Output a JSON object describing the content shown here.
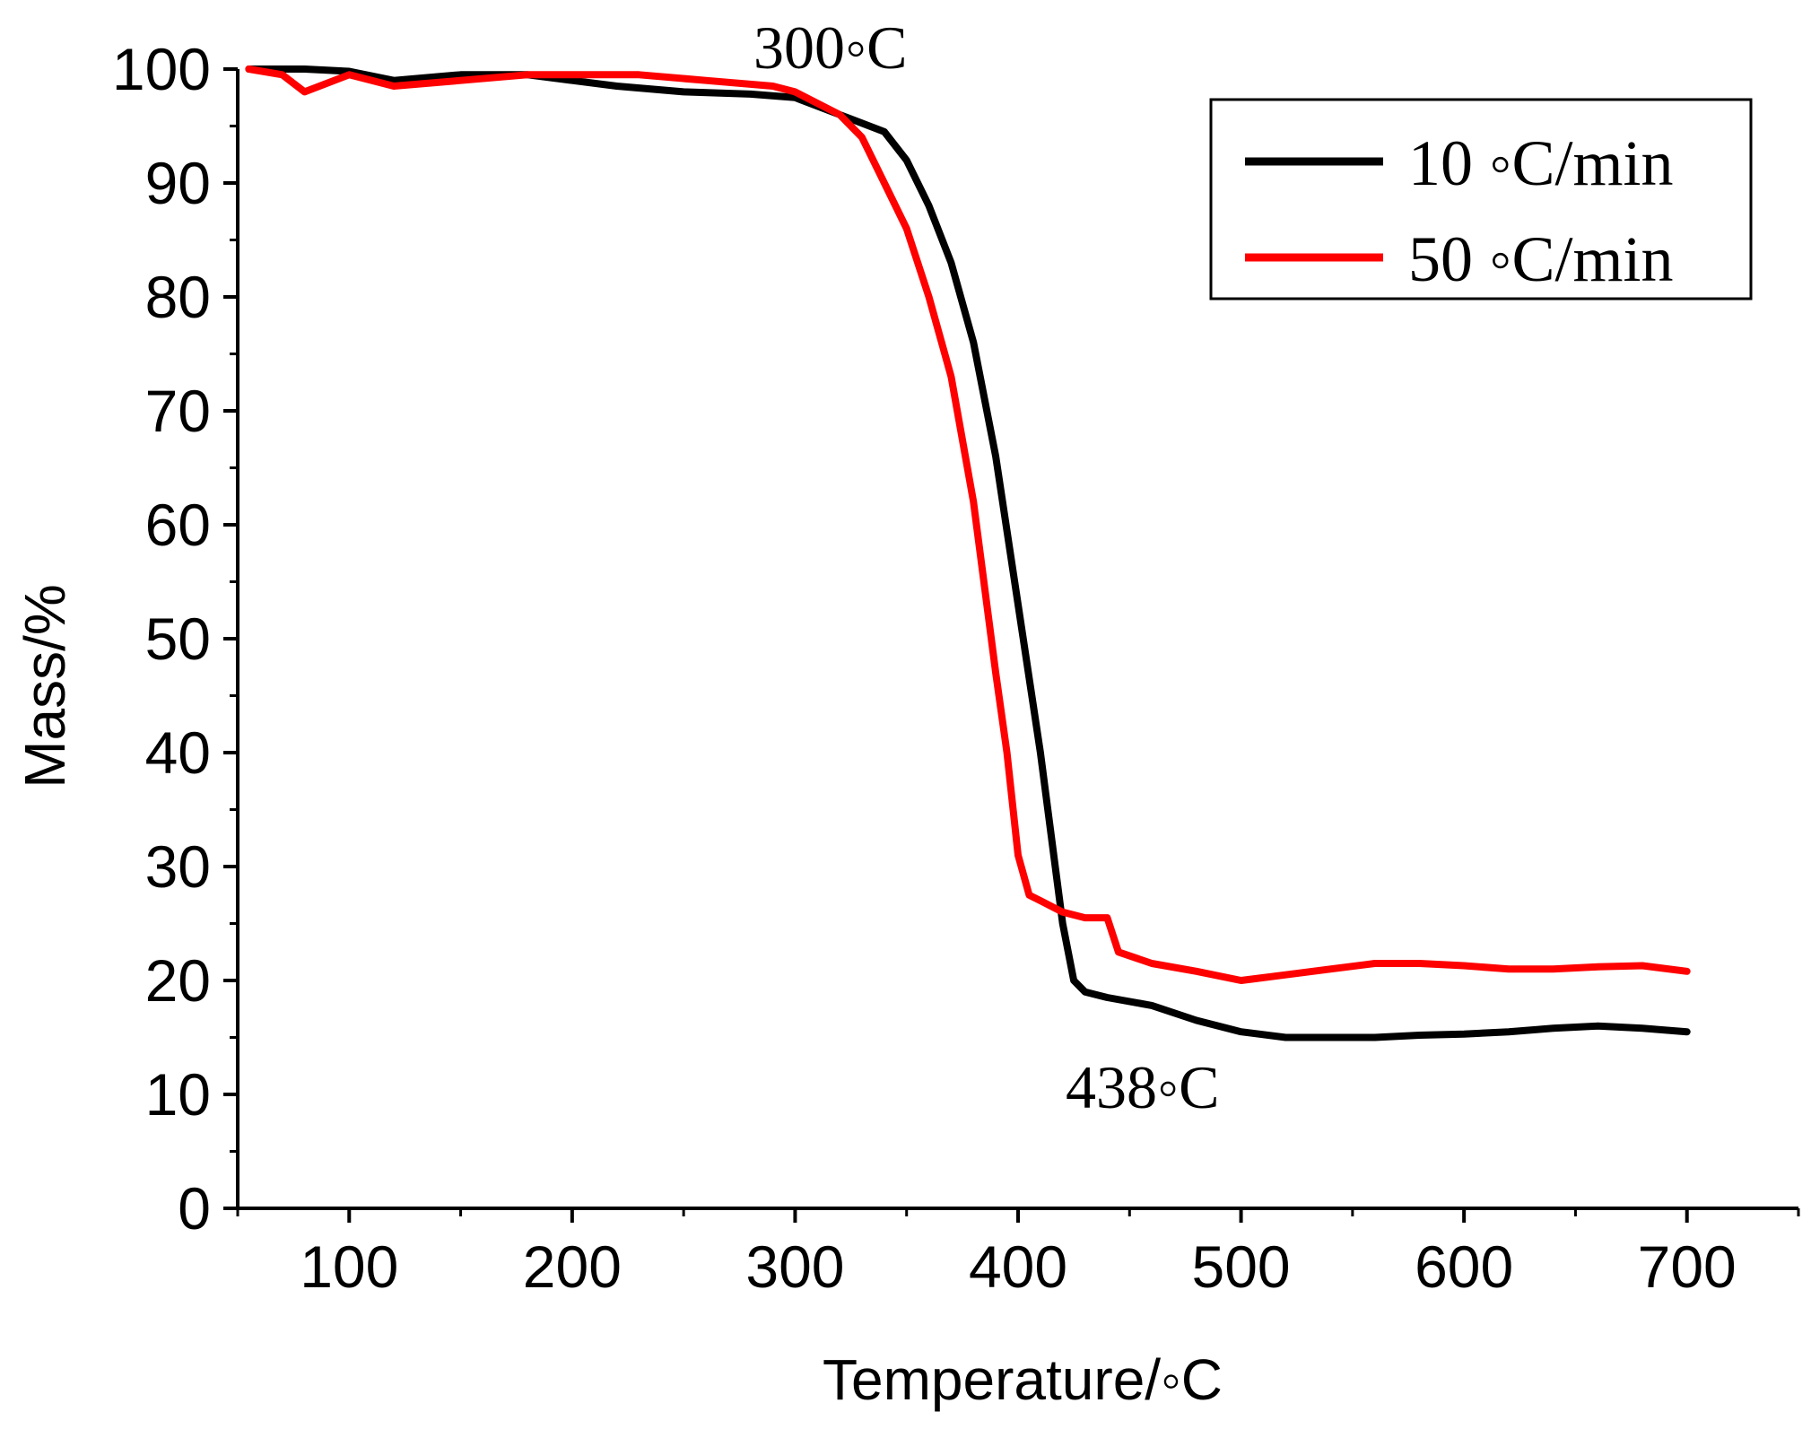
{
  "chart_data": {
    "type": "line",
    "xlabel": "Temperature/◦C",
    "ylabel": "Mass/%",
    "xlim": [
      50,
      750
    ],
    "ylim": [
      0,
      100
    ],
    "xticks": [
      100,
      200,
      300,
      400,
      500,
      600,
      700
    ],
    "yticks": [
      0,
      10,
      20,
      30,
      40,
      50,
      60,
      70,
      80,
      90,
      100
    ],
    "grid": false,
    "legend_position": "top-right",
    "annotations": [
      {
        "text": "300◦C",
        "x": 300,
        "y": 100
      },
      {
        "text": "438◦C",
        "x": 438,
        "y": 15
      }
    ],
    "series": [
      {
        "name": "10 ◦C/min",
        "color": "#000000",
        "x": [
          55,
          80,
          100,
          120,
          150,
          180,
          200,
          220,
          250,
          280,
          300,
          320,
          340,
          350,
          360,
          370,
          380,
          390,
          400,
          410,
          420,
          425,
          430,
          440,
          460,
          480,
          500,
          520,
          540,
          560,
          580,
          600,
          620,
          640,
          660,
          680,
          700
        ],
        "y": [
          100,
          100,
          99.8,
          99,
          99.5,
          99.5,
          99,
          98.5,
          98,
          97.8,
          97.5,
          96,
          94.5,
          92,
          88,
          83,
          76,
          66,
          53,
          40,
          25,
          20,
          19,
          18.5,
          17.8,
          16.5,
          15.5,
          15,
          15,
          15,
          15.2,
          15.3,
          15.5,
          15.8,
          16,
          15.8,
          15.5
        ]
      },
      {
        "name": "50 ◦C/min",
        "color": "#ff0000",
        "x": [
          55,
          70,
          80,
          100,
          120,
          150,
          180,
          200,
          230,
          260,
          290,
          300,
          320,
          330,
          340,
          350,
          360,
          370,
          380,
          390,
          395,
          400,
          405,
          410,
          420,
          430,
          440,
          445,
          460,
          480,
          500,
          520,
          540,
          560,
          580,
          600,
          620,
          640,
          660,
          680,
          700
        ],
        "y": [
          100,
          99.5,
          98,
          99.5,
          98.5,
          99,
          99.5,
          99.5,
          99.5,
          99,
          98.5,
          98,
          96,
          94,
          90,
          86,
          80,
          73,
          62,
          47,
          40,
          31,
          27.5,
          27,
          26,
          25.5,
          25.5,
          22.5,
          21.5,
          20.8,
          20,
          20.5,
          21,
          21.5,
          21.5,
          21.3,
          21,
          21,
          21.2,
          21.3,
          20.8
        ]
      }
    ]
  }
}
